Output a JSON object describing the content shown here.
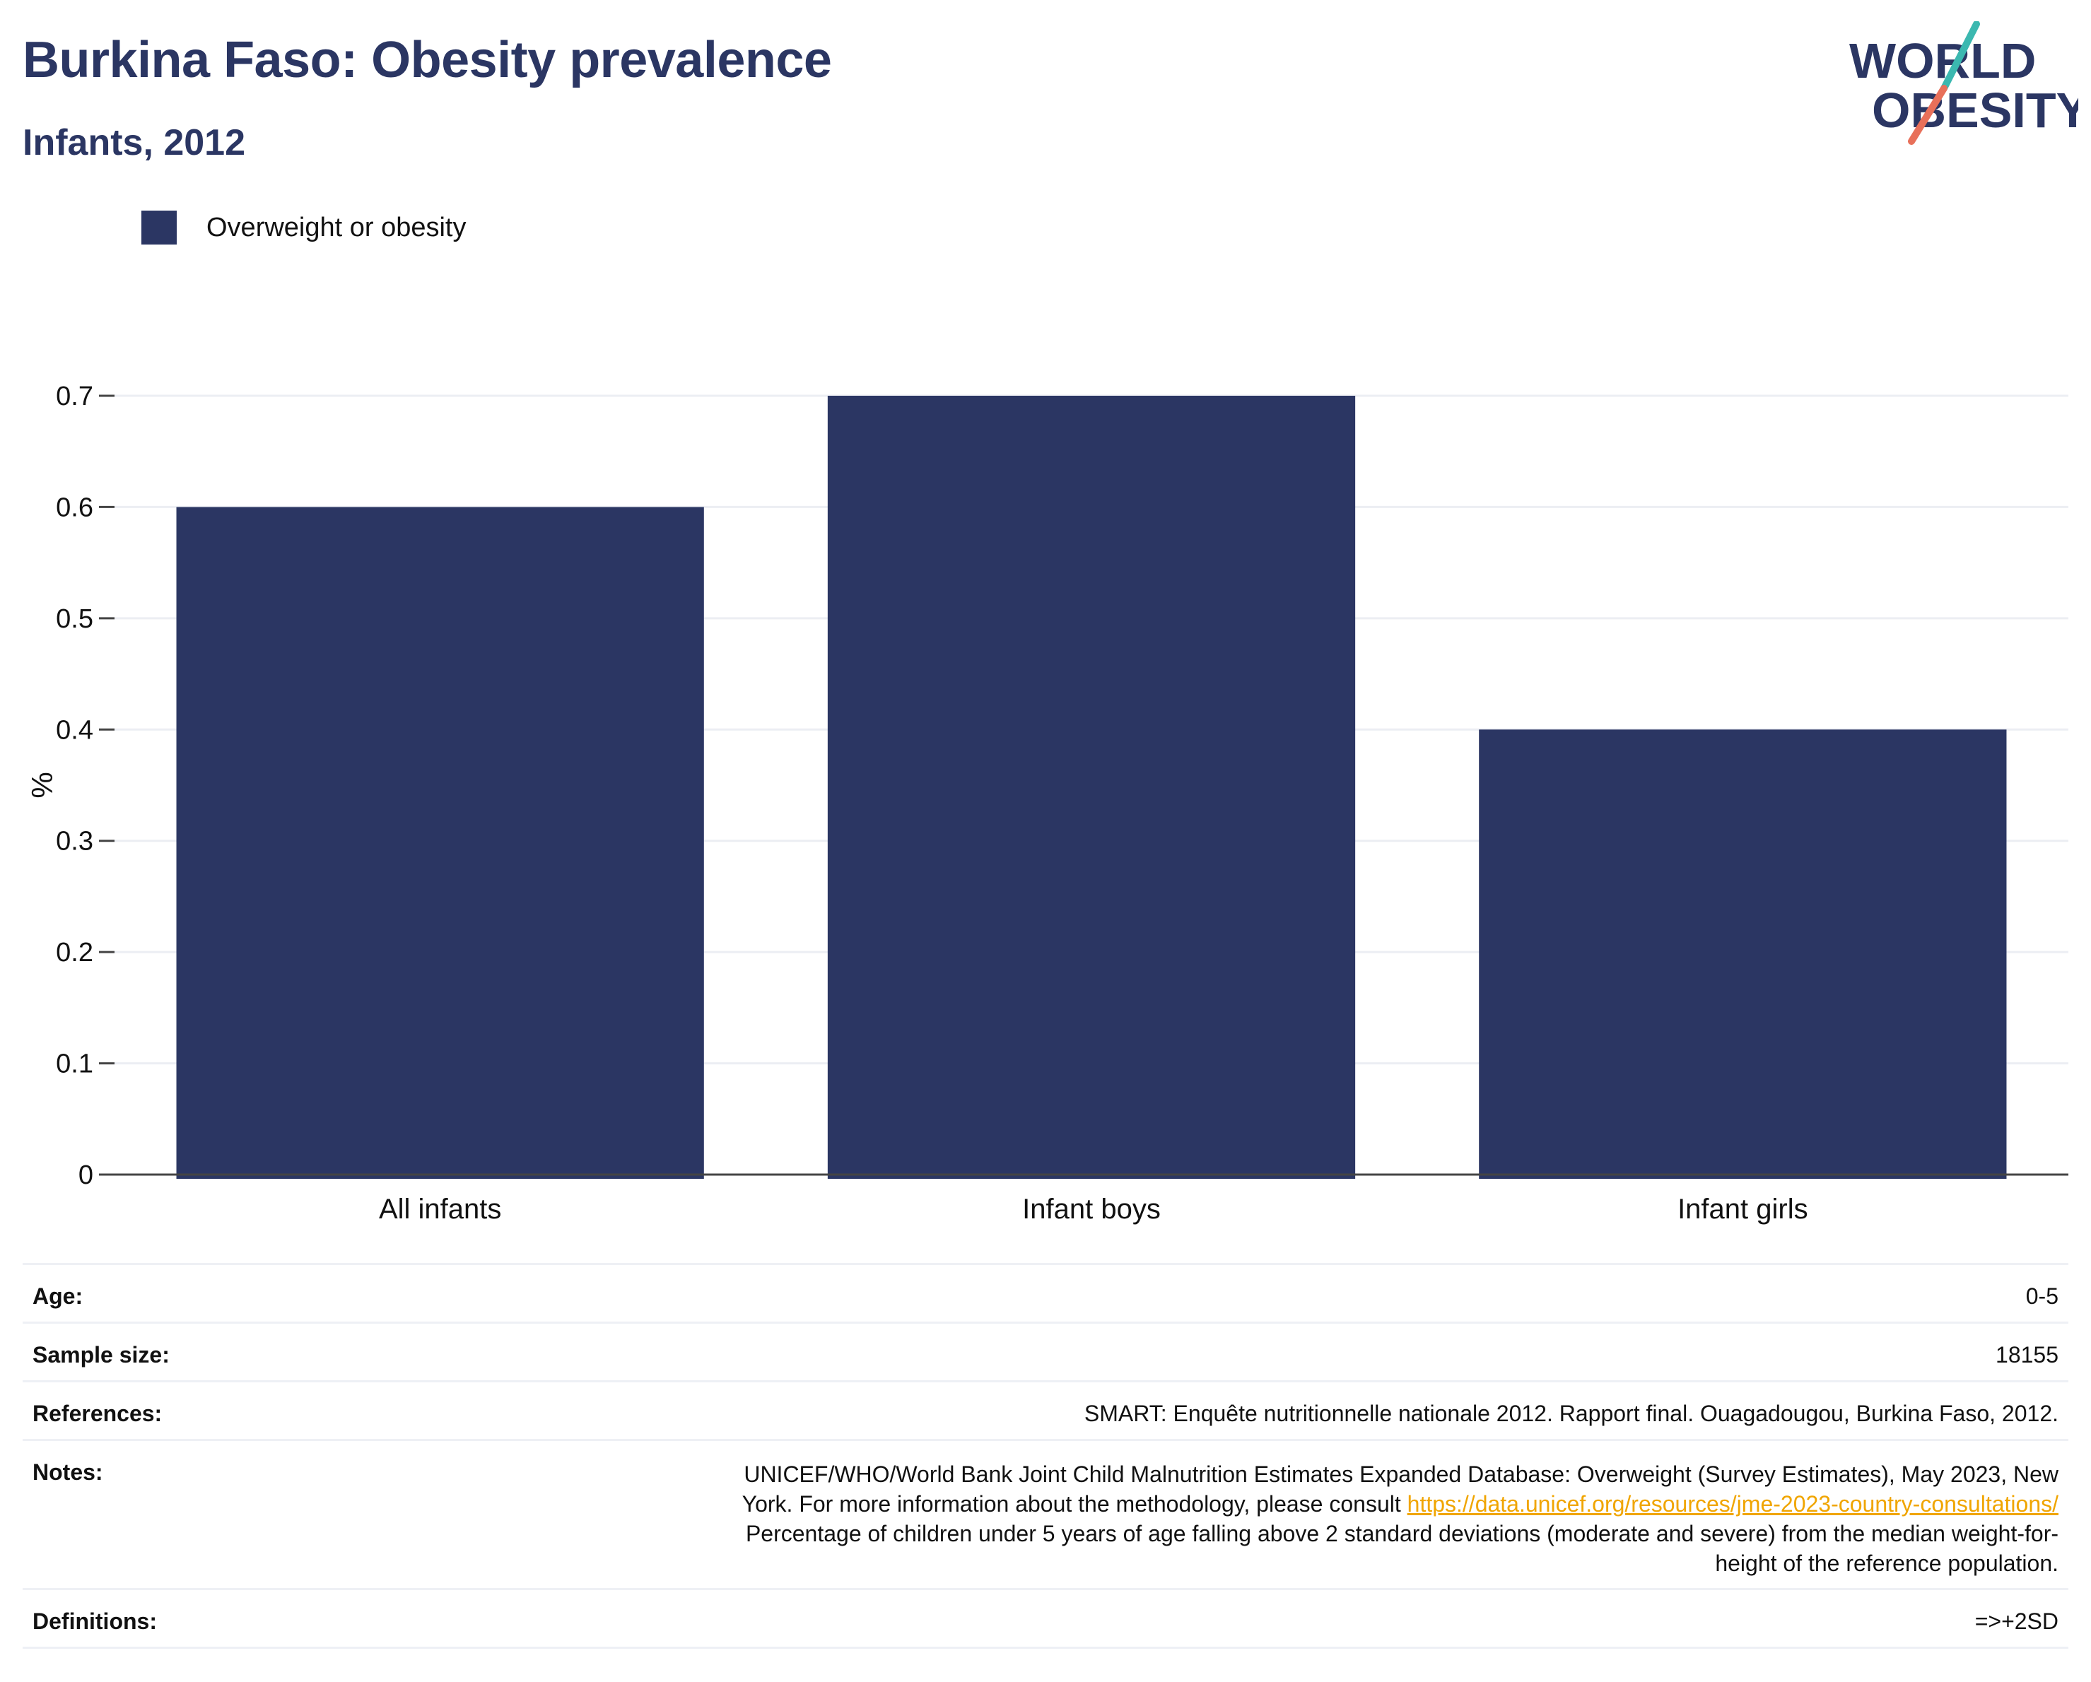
{
  "header": {
    "title": "Burkina Faso: Obesity prevalence",
    "subtitle": "Infants, 2012",
    "logo_text": [
      "WORLD",
      "OBESITY"
    ]
  },
  "colors": {
    "bar": "#2b3663",
    "title": "#2b3663",
    "grid": "#eceef3",
    "link": "#f0a500",
    "logo_teal": "#3bb8b0",
    "logo_coral": "#e8705a"
  },
  "chart_data": {
    "type": "bar",
    "categories": [
      "All infants",
      "Infant boys",
      "Infant girls"
    ],
    "series": [
      {
        "name": "Overweight or obesity",
        "values": [
          0.6,
          0.7,
          0.4
        ]
      }
    ],
    "ylabel": "%",
    "xlabel": "",
    "ylim": [
      0,
      0.7
    ],
    "yticks": [
      "0",
      "0.1",
      "0.2",
      "0.3",
      "0.4",
      "0.5",
      "0.6",
      "0.7"
    ],
    "grid": true,
    "legend_position": "top-left"
  },
  "info": {
    "age": {
      "label": "Age:",
      "value": "0-5"
    },
    "sample_size": {
      "label": "Sample size:",
      "value": "18155"
    },
    "references": {
      "label": "References:",
      "value": "SMART: Enquête nutritionnelle nationale 2012. Rapport final. Ouagadougou, Burkina Faso, 2012."
    },
    "notes": {
      "label": "Notes:",
      "line1": "UNICEF/WHO/World Bank Joint Child Malnutrition Estimates Expanded Database: Overweight (Survey Estimates), May 2023, New",
      "line2_prefix": "York. For more information about the methodology, please consult ",
      "link": "https://data.unicef.org/resources/jme-2023-country-consultations/",
      "line3": "Percentage of children under 5 years of age falling above 2 standard deviations (moderate and severe) from the median weight-for-",
      "line4": "height of the reference population."
    },
    "definitions": {
      "label": "Definitions:",
      "value": "=>+2SD"
    }
  }
}
